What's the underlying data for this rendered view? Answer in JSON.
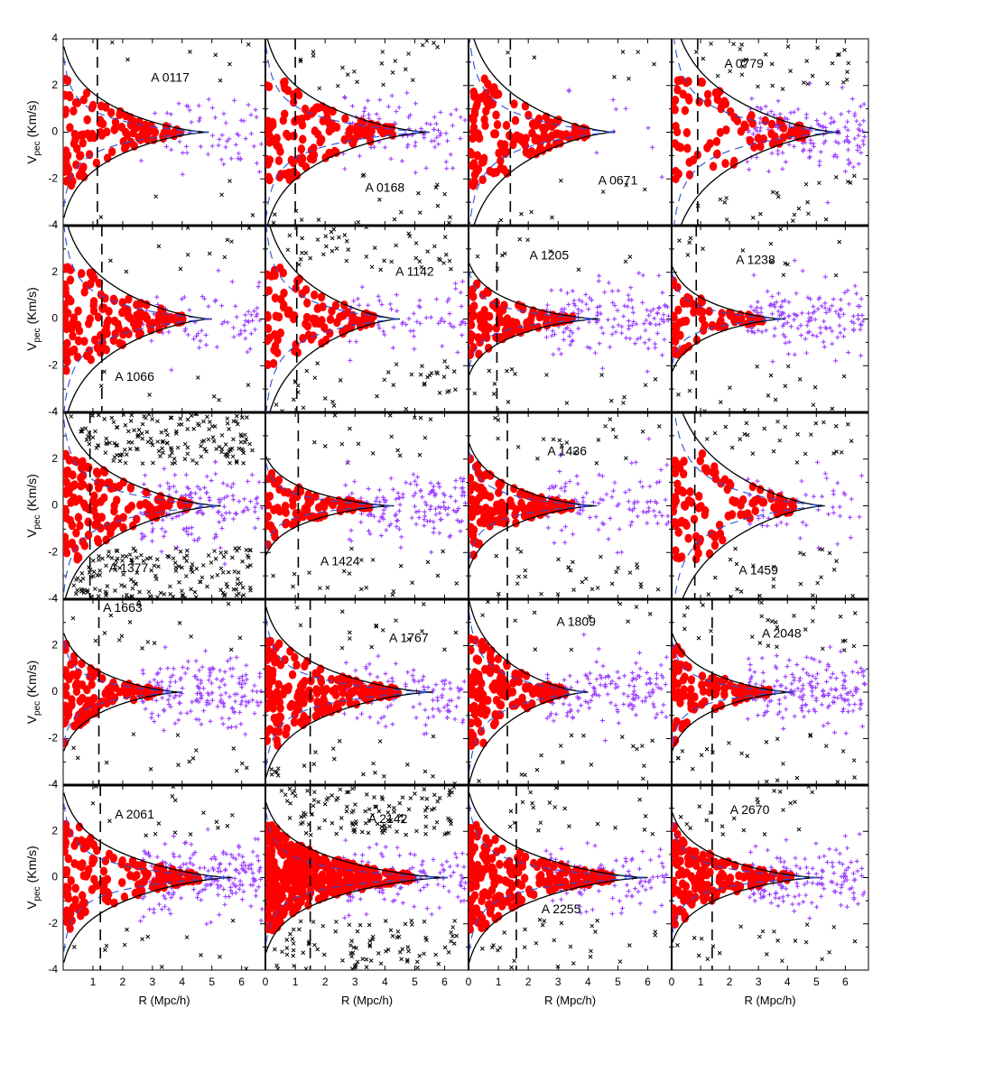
{
  "chart_data": {
    "type": "scatter",
    "grid": false,
    "layout": {
      "rows": 5,
      "cols": 4
    },
    "xlabel": "R (Mpc/h)",
    "ylabel": {
      "main": "V",
      "sub": "pec",
      "rest": " (Km/s)"
    },
    "xlim": [
      0,
      6.8
    ],
    "ylim": [
      -4,
      4
    ],
    "xticks_first_col": [
      "1",
      "2",
      "3",
      "4",
      "5",
      "6"
    ],
    "xticks_other_cols": [
      "0",
      "1",
      "2",
      "3",
      "4",
      "5",
      "6"
    ],
    "yticks": [
      "4",
      "2",
      "0",
      "-2",
      "-4"
    ],
    "series_colors": {
      "caustic": "#000000",
      "model_dashed": "#2a4fd6",
      "members": "#ff0000",
      "infall": "#9b40ff",
      "interlopers": "#000000"
    },
    "panels": [
      {
        "name": "A 0117",
        "r_vir": 1.15,
        "caustic_amp": 2.6,
        "r_max": 4.9,
        "label": [
          3.6,
          2.3
        ],
        "n_in": 110,
        "n_out": 70,
        "n_int": 14
      },
      {
        "name": "A 0168",
        "r_vir": 1.0,
        "caustic_amp": 3.0,
        "r_max": 5.5,
        "label": [
          4.0,
          -2.4
        ],
        "n_in": 130,
        "n_out": 90,
        "n_int": 55
      },
      {
        "name": "A 0671",
        "r_vir": 1.4,
        "caustic_amp": 3.4,
        "r_max": 4.9,
        "label": [
          5.0,
          -2.1
        ],
        "n_in": 140,
        "n_out": 15,
        "n_int": 20
      },
      {
        "name": "A 0779",
        "r_vir": 0.9,
        "caustic_amp": 3.8,
        "r_max": 5.8,
        "label": [
          2.5,
          2.9
        ],
        "n_in": 90,
        "n_out": 160,
        "n_int": 80
      },
      {
        "name": "A 1066",
        "r_vir": 1.3,
        "caustic_amp": 3.3,
        "r_max": 5.0,
        "label": [
          2.4,
          -2.5
        ],
        "n_in": 140,
        "n_out": 70,
        "n_int": 25
      },
      {
        "name": "A 1142",
        "r_vir": 1.05,
        "caustic_amp": 3.3,
        "r_max": 4.5,
        "label": [
          5.0,
          2.0
        ],
        "n_in": 90,
        "n_out": 70,
        "n_int": 110
      },
      {
        "name": "A 1205",
        "r_vir": 0.95,
        "caustic_amp": 1.7,
        "r_max": 4.4,
        "label": [
          2.7,
          2.7
        ],
        "n_in": 100,
        "n_out": 150,
        "n_int": 30
      },
      {
        "name": "A 1238",
        "r_vir": 0.85,
        "caustic_amp": 1.6,
        "r_max": 3.9,
        "label": [
          2.9,
          2.5
        ],
        "n_in": 70,
        "n_out": 150,
        "n_int": 40
      },
      {
        "name": "A 1377",
        "r_vir": 0.9,
        "caustic_amp": 3.0,
        "r_max": 5.3,
        "label": [
          2.2,
          -2.7
        ],
        "n_in": 130,
        "n_out": 150,
        "n_int": 450
      },
      {
        "name": "A 1424",
        "r_vir": 1.1,
        "caustic_amp": 1.5,
        "r_max": 4.3,
        "label": [
          2.5,
          -2.4
        ],
        "n_in": 90,
        "n_out": 150,
        "n_int": 50
      },
      {
        "name": "A 1436",
        "r_vir": 1.3,
        "caustic_amp": 1.9,
        "r_max": 4.3,
        "label": [
          3.3,
          2.3
        ],
        "n_in": 140,
        "n_out": 110,
        "n_int": 60
      },
      {
        "name": "A 1459",
        "r_vir": 0.8,
        "caustic_amp": 4.0,
        "r_max": 5.3,
        "label": [
          3.0,
          -2.8
        ],
        "n_in": 110,
        "n_out": 50,
        "n_int": 80
      },
      {
        "name": "A 1663",
        "r_vir": 1.2,
        "caustic_amp": 1.8,
        "r_max": 4.0,
        "label": [
          2.0,
          3.6
        ],
        "n_in": 120,
        "n_out": 180,
        "n_int": 40
      },
      {
        "name": "A 1767",
        "r_vir": 1.5,
        "caustic_amp": 2.6,
        "r_max": 5.6,
        "label": [
          4.8,
          2.3
        ],
        "n_in": 190,
        "n_out": 110,
        "n_int": 50
      },
      {
        "name": "A 1809",
        "r_vir": 1.3,
        "caustic_amp": 2.8,
        "r_max": 4.0,
        "label": [
          3.6,
          3.0
        ],
        "n_in": 150,
        "n_out": 150,
        "n_int": 30
      },
      {
        "name": "A 2048",
        "r_vir": 1.4,
        "caustic_amp": 1.8,
        "r_max": 4.2,
        "label": [
          3.8,
          2.5
        ],
        "n_in": 100,
        "n_out": 180,
        "n_int": 60
      },
      {
        "name": "A 2061",
        "r_vir": 1.25,
        "caustic_amp": 2.6,
        "r_max": 5.7,
        "label": [
          2.4,
          2.7
        ],
        "n_in": 150,
        "n_out": 200,
        "n_int": 40
      },
      {
        "name": "A 2142",
        "r_vir": 1.5,
        "caustic_amp": 2.3,
        "r_max": 6.1,
        "label": [
          4.1,
          2.5
        ],
        "n_in": 400,
        "n_out": 130,
        "n_int": 260
      },
      {
        "name": "A 2255",
        "r_vir": 1.6,
        "caustic_amp": 2.6,
        "r_max": 6.0,
        "label": [
          3.1,
          -1.4
        ],
        "n_in": 220,
        "n_out": 100,
        "n_int": 70
      },
      {
        "name": "A 2670",
        "r_vir": 1.4,
        "caustic_amp": 2.0,
        "r_max": 5.1,
        "label": [
          2.7,
          2.9
        ],
        "n_in": 160,
        "n_out": 150,
        "n_int": 50
      }
    ]
  }
}
